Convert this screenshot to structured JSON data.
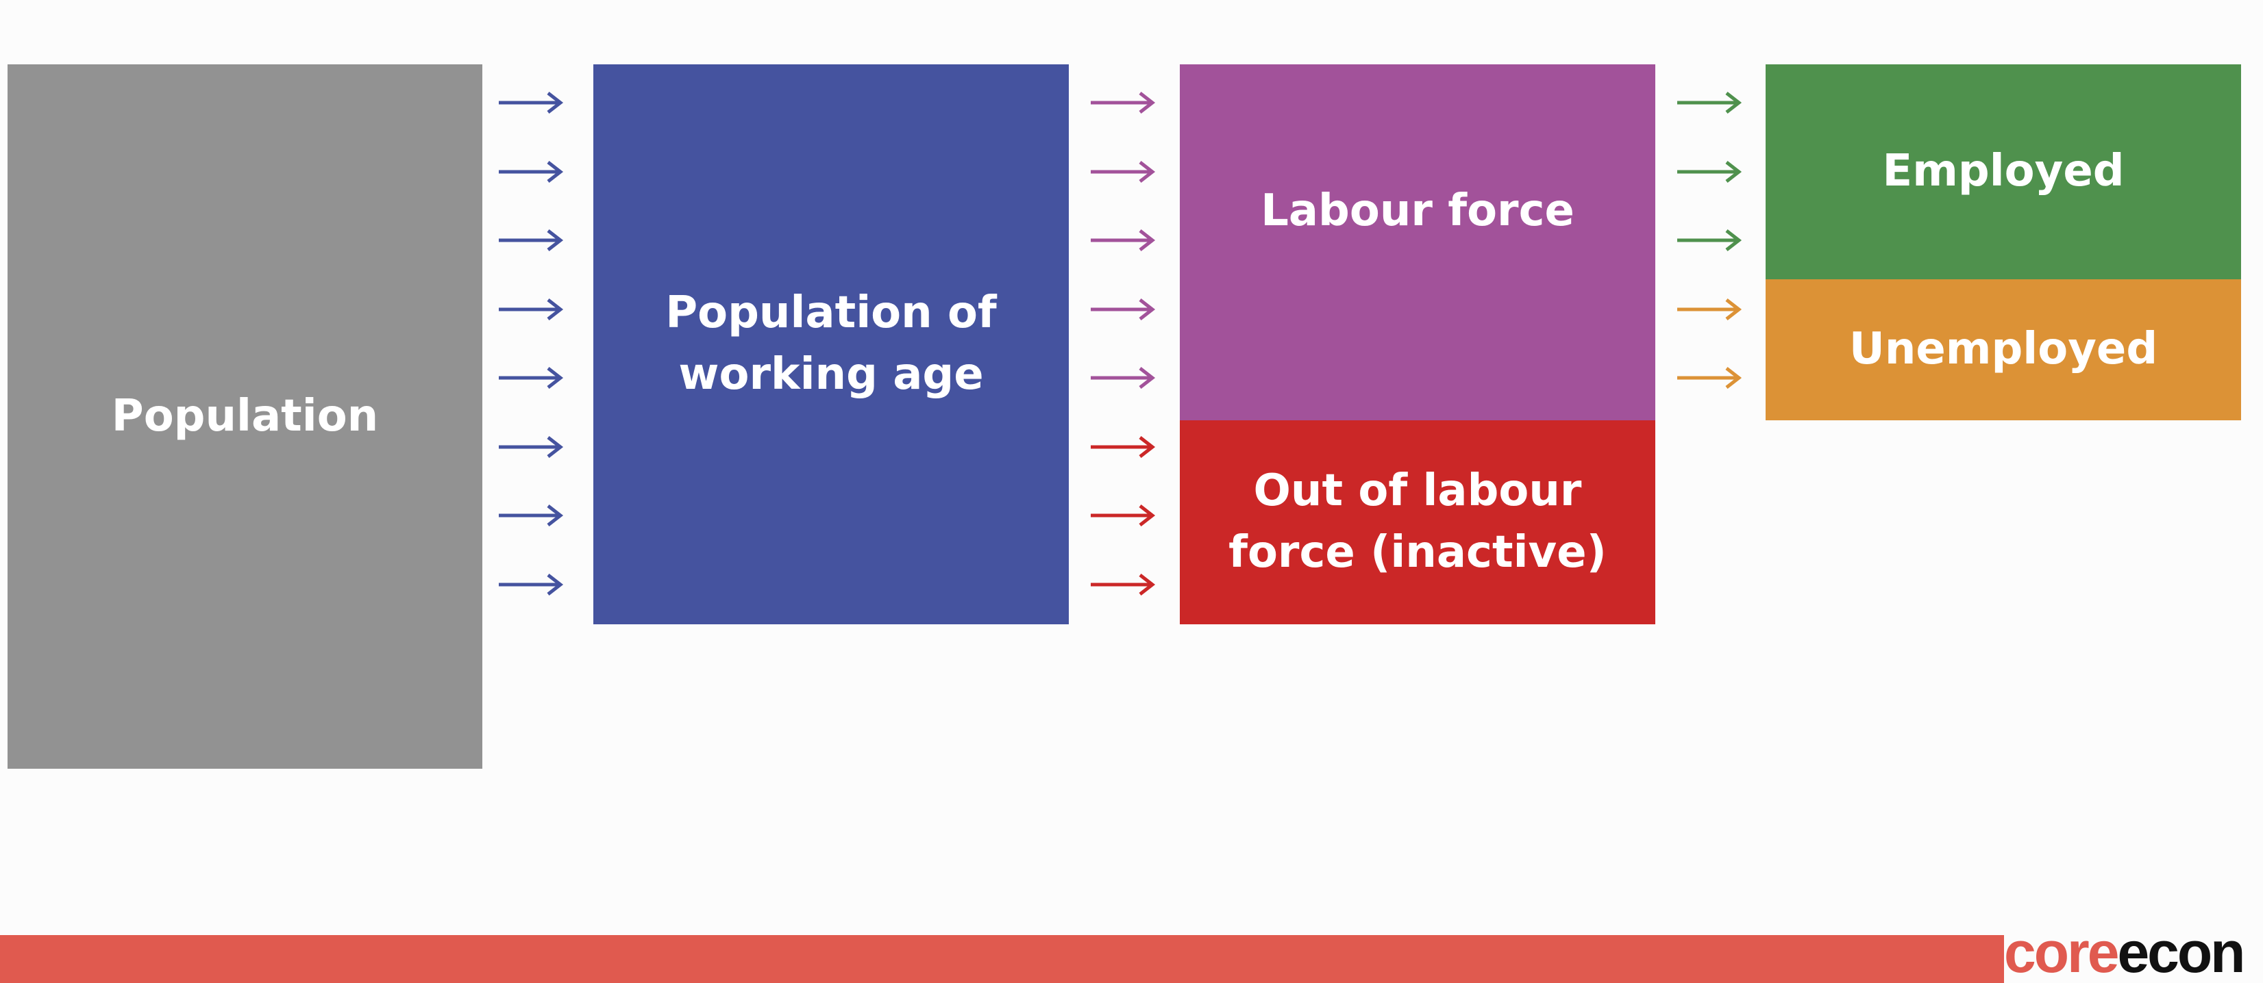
{
  "diagram": {
    "boxes": {
      "population": {
        "label": "Population",
        "color": "#929292"
      },
      "working_age": {
        "label": "Population of\nworking age",
        "color": "#45539f"
      },
      "labour_force": {
        "label": "Labour force",
        "color": "#a2529a"
      },
      "inactive": {
        "label": "Out of labour\nforce (inactive)",
        "color": "#cb2727"
      },
      "employed": {
        "label": "Employed",
        "color": "#4f914d"
      },
      "unemployed": {
        "label": "Unemployed",
        "color": "#dc9236"
      }
    },
    "arrow_groups": [
      {
        "from": "population",
        "to": "working_age",
        "colors": [
          "#45539f",
          "#45539f",
          "#45539f",
          "#45539f",
          "#45539f",
          "#45539f",
          "#45539f",
          "#45539f"
        ]
      },
      {
        "from": "working_age",
        "to": "labour_force / inactive",
        "colors": [
          "#a2529a",
          "#a2529a",
          "#a2529a",
          "#a2529a",
          "#a2529a",
          "#cb2727",
          "#cb2727",
          "#cb2727"
        ]
      },
      {
        "from": "labour_force",
        "to": "employed / unemployed",
        "colors": [
          "#4f914d",
          "#4f914d",
          "#4f914d",
          "#dc9236",
          "#dc9236"
        ]
      }
    ]
  },
  "footer": {
    "bar_color": "#e05a4f",
    "logo_core": "core",
    "logo_econ": "econ",
    "logo_core_color": "#e05a4f",
    "logo_econ_color": "#111111"
  }
}
